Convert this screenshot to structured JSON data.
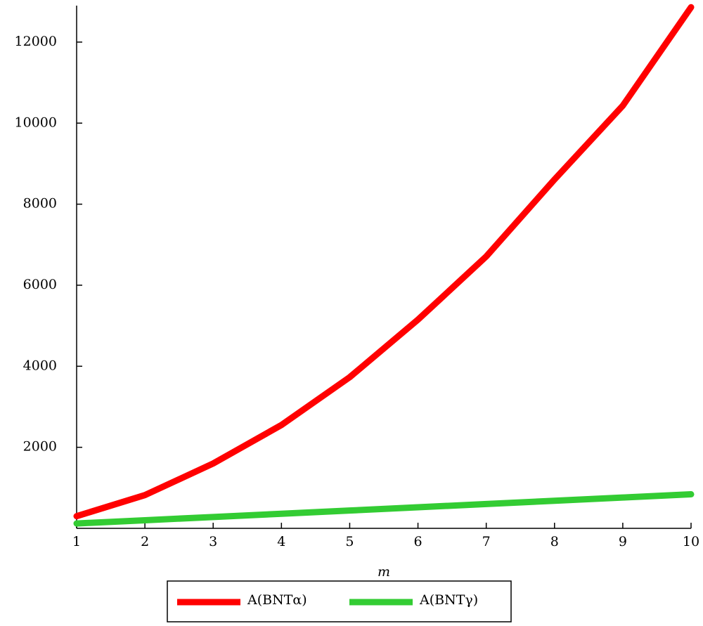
{
  "chart_data": {
    "type": "line",
    "x_label": "m",
    "x": [
      1,
      2,
      3,
      4,
      5,
      6,
      7,
      8,
      9,
      10
    ],
    "series": [
      {
        "name": "A(BNTα)",
        "color": "#ff0000",
        "values": [
          300,
          820,
          1600,
          2550,
          3730,
          5150,
          6710,
          8610,
          10430,
          12860
        ]
      },
      {
        "name": "A(BNTγ)",
        "color": "#33cc33",
        "values": [
          120,
          200,
          280,
          360,
          440,
          520,
          600,
          680,
          760,
          840
        ]
      }
    ],
    "xlim": [
      1,
      10
    ],
    "xticks": [
      1,
      2,
      3,
      4,
      5,
      6,
      7,
      8,
      9,
      10
    ],
    "ylim": [
      0,
      12900
    ],
    "yticks": [
      2000,
      4000,
      6000,
      8000,
      10000,
      12000
    ],
    "legend": "bottom"
  }
}
